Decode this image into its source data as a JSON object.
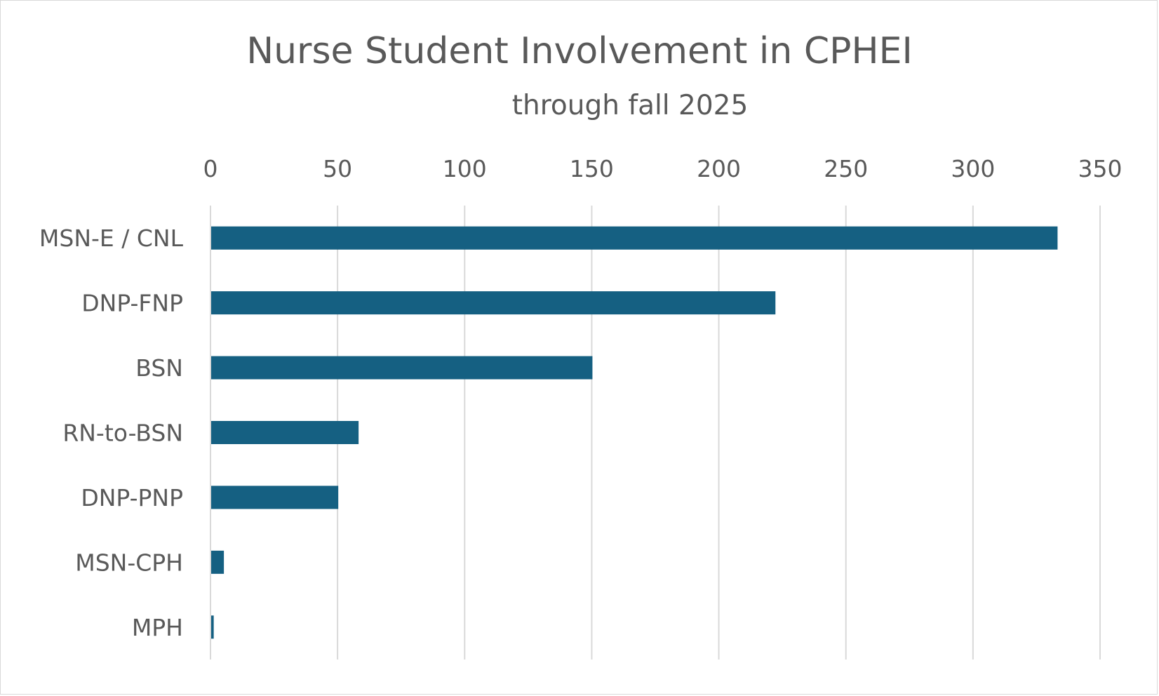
{
  "chart_data": {
    "type": "bar",
    "orientation": "horizontal",
    "title": "Nurse Student Involvement in CPHEI",
    "subtitle": "through fall 2025",
    "categories": [
      "MSN-E / CNL",
      "DNP-FNP",
      "BSN",
      "RN-to-BSN",
      "DNP-PNP",
      "MSN-CPH",
      "MPH"
    ],
    "values": [
      333,
      222,
      150,
      58,
      50,
      5,
      1
    ],
    "xlim": [
      0,
      350
    ],
    "x_ticks": [
      "0",
      "50",
      "100",
      "150",
      "200",
      "250",
      "300",
      "350"
    ],
    "x_axis_position": "top",
    "grid": true,
    "legend": "none",
    "bar_color": "#156082",
    "grid_color": "#d9d9d9",
    "text_color": "#595959"
  }
}
